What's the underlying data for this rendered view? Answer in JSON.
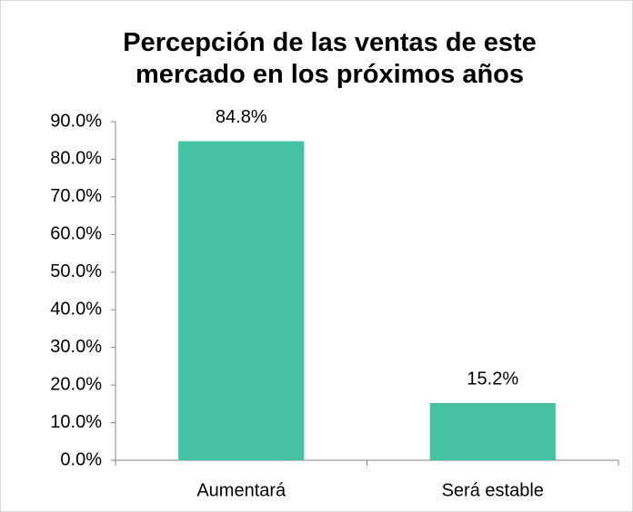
{
  "chart_data": {
    "type": "bar",
    "title": "Percepción de las ventas de este mercado en los próximos años",
    "categories": [
      "Aumentará",
      "Será estable"
    ],
    "values": [
      84.8,
      15.2
    ],
    "value_labels": [
      "84.8%",
      "15.2%"
    ],
    "color": "#45c1a4",
    "ylim": [
      0,
      90
    ],
    "yticks": [
      {
        "value": 0,
        "label": "0.0%"
      },
      {
        "value": 10,
        "label": "10.0%"
      },
      {
        "value": 20,
        "label": "20.0%"
      },
      {
        "value": 30,
        "label": "30.0%"
      },
      {
        "value": 40,
        "label": "40.0%"
      },
      {
        "value": 50,
        "label": "50.0%"
      },
      {
        "value": 60,
        "label": "60.0%"
      },
      {
        "value": 70,
        "label": "70.0%"
      },
      {
        "value": 80,
        "label": "80.0%"
      },
      {
        "value": 90,
        "label": "90.0%"
      }
    ],
    "grid": false
  }
}
